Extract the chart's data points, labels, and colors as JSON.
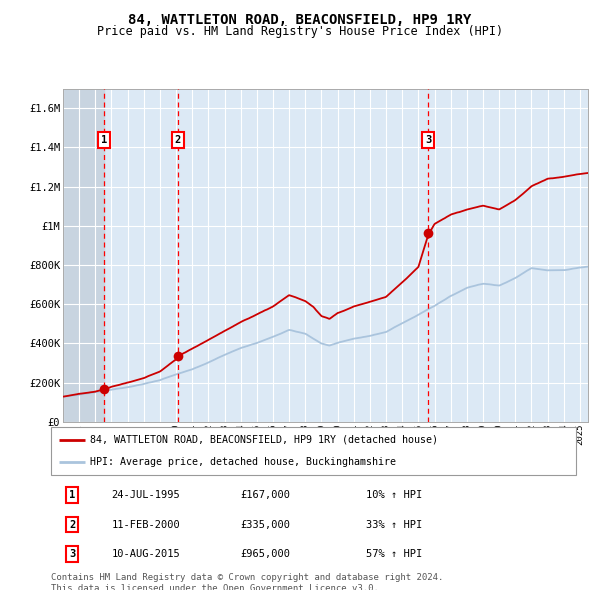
{
  "title1": "84, WATTLETON ROAD, BEACONSFIELD, HP9 1RY",
  "title2": "Price paid vs. HM Land Registry's House Price Index (HPI)",
  "ylim": [
    0,
    1700000
  ],
  "yticks": [
    0,
    200000,
    400000,
    600000,
    800000,
    1000000,
    1200000,
    1400000,
    1600000
  ],
  "ytick_labels": [
    "£0",
    "£200K",
    "£400K",
    "£600K",
    "£800K",
    "£1M",
    "£1.2M",
    "£1.4M",
    "£1.6M"
  ],
  "hpi_color": "#aac4dd",
  "price_color": "#cc0000",
  "sale1_date": 1995.56,
  "sale1_price": 167000,
  "sale2_date": 2000.11,
  "sale2_price": 335000,
  "sale3_date": 2015.61,
  "sale3_price": 965000,
  "legend_label1": "84, WATTLETON ROAD, BEACONSFIELD, HP9 1RY (detached house)",
  "legend_label2": "HPI: Average price, detached house, Buckinghamshire",
  "table_rows": [
    [
      "1",
      "24-JUL-1995",
      "£167,000",
      "10% ↑ HPI"
    ],
    [
      "2",
      "11-FEB-2000",
      "£335,000",
      "33% ↑ HPI"
    ],
    [
      "3",
      "10-AUG-2015",
      "£965,000",
      "57% ↑ HPI"
    ]
  ],
  "footnote1": "Contains HM Land Registry data © Crown copyright and database right 2024.",
  "footnote2": "This data is licensed under the Open Government Licence v3.0.",
  "plot_bg": "#dce9f5",
  "hatch_bg": "#c8d4e0",
  "xmin": 1993.0,
  "xmax": 2025.5,
  "grid_color": "#ffffff",
  "title_fontsize": 10,
  "subtitle_fontsize": 8.5
}
